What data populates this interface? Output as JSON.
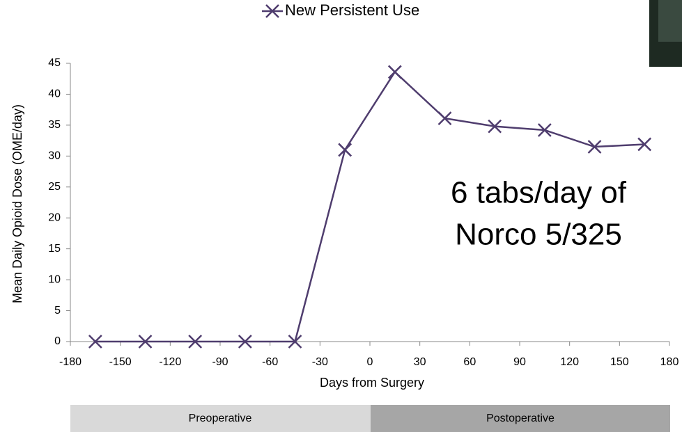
{
  "chart_data": {
    "type": "line",
    "x_label": "Days from Surgery",
    "y_label": "Mean Daily Opioid Dose (OME/day)",
    "x": [
      -165,
      -135,
      -105,
      -75,
      -45,
      -15,
      15,
      45,
      75,
      105,
      135,
      165
    ],
    "series": [
      {
        "name": "New Persistent Use",
        "color": "#4f3d6e",
        "values": [
          0,
          0,
          0,
          0,
          0,
          31,
          43.6,
          36.1,
          34.8,
          34.2,
          31.5,
          31.9
        ]
      }
    ],
    "xlim": [
      -180,
      180
    ],
    "xticks": [
      -180,
      -150,
      -120,
      -90,
      -60,
      -30,
      0,
      30,
      60,
      90,
      120,
      150,
      180
    ],
    "ylim": [
      0,
      45
    ],
    "yticks": [
      0,
      5,
      10,
      15,
      20,
      25,
      30,
      35,
      40,
      45
    ],
    "annotation": [
      "6 tabs/day of",
      "Norco 5/325"
    ],
    "phases": [
      "Preoperative",
      "Postoperative"
    ]
  }
}
